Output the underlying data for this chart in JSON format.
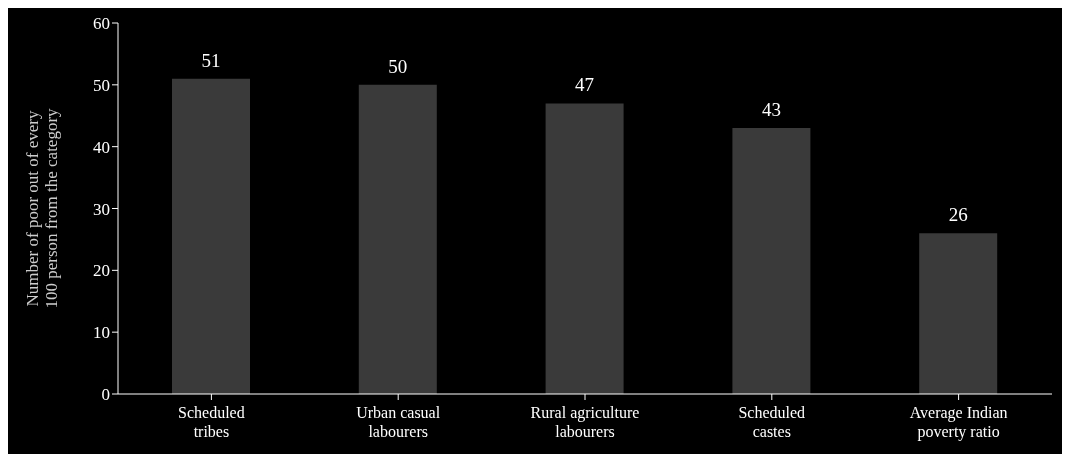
{
  "chart_data": {
    "type": "bar",
    "ylabel": "Number of poor out of every 100 person from the category",
    "categories": [
      "Scheduled tribes",
      "Urban casual labourers",
      "Rural agriculture labourers",
      "Scheduled castes",
      "Average Indian poverty ratio"
    ],
    "values": [
      51,
      50,
      47,
      43,
      26
    ],
    "color": "#3a3a3a",
    "data_labels": true,
    "ylim": [
      0,
      60
    ],
    "yticks": [
      0,
      10,
      20,
      30,
      40,
      50,
      60
    ]
  }
}
